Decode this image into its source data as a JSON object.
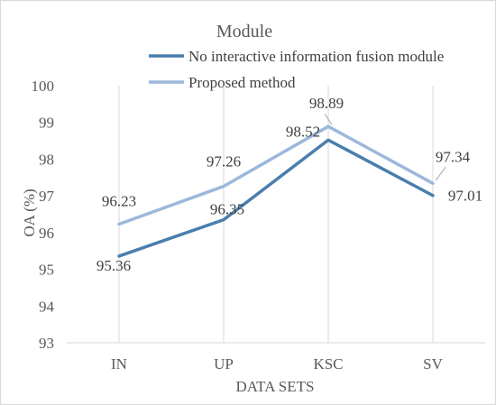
{
  "chart_data": {
    "type": "line",
    "title": "Module",
    "xlabel": "DATA SETS",
    "ylabel": "OA (%)",
    "categories": [
      "IN",
      "UP",
      "KSC",
      "SV"
    ],
    "ylim": [
      93,
      100
    ],
    "yticks": [
      93,
      94,
      95,
      96,
      97,
      98,
      99,
      100
    ],
    "grid": "vertical",
    "legend_position": "top",
    "series": [
      {
        "name": "No interactive information fusion module",
        "values": [
          95.36,
          96.35,
          98.52,
          97.01
        ],
        "labels": [
          "95.36",
          "96.35",
          "98.52",
          "97.01"
        ],
        "color": "#4a7ead"
      },
      {
        "name": "Proposed method",
        "values": [
          96.23,
          97.26,
          98.89,
          97.34
        ],
        "labels": [
          "96.23",
          "97.26",
          "98.89",
          "97.34"
        ],
        "color": "#9cb8db"
      }
    ]
  }
}
